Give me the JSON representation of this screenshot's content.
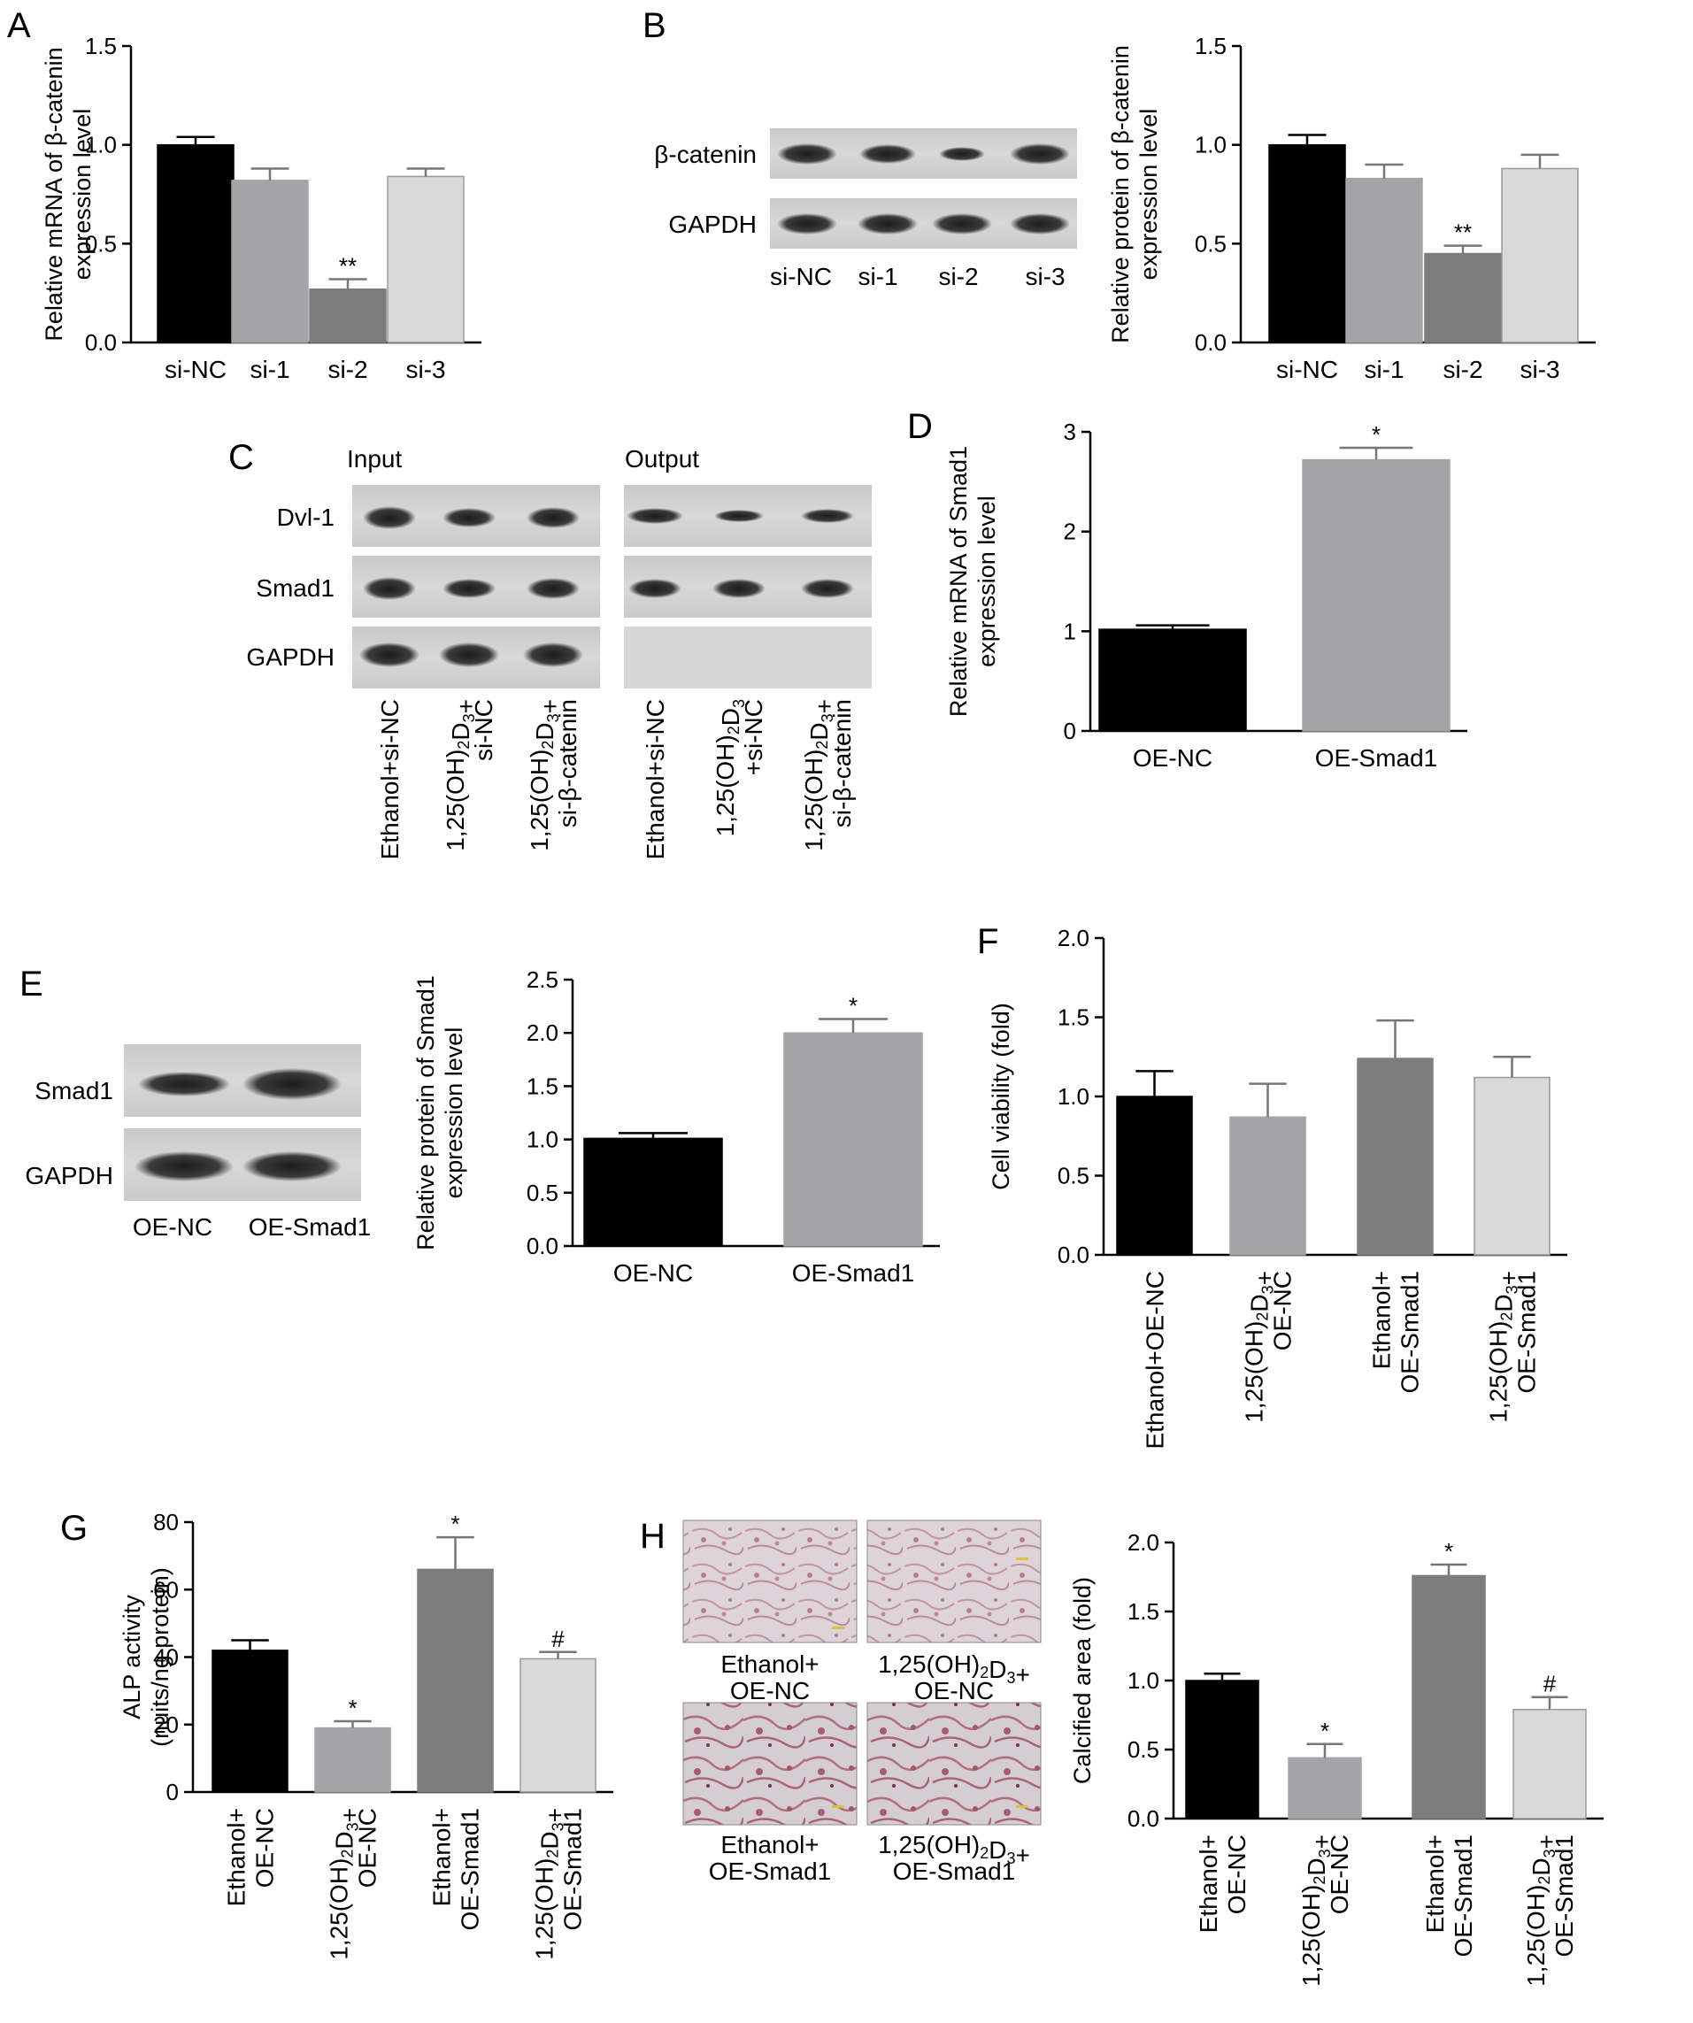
{
  "panels": {
    "A": "A",
    "B": "B",
    "C": "C",
    "D": "D",
    "E": "E",
    "F": "F",
    "G": "G",
    "H": "H"
  },
  "colors": {
    "black": "#000000",
    "mid_gray": "#a3a3a8",
    "dark_gray": "#7d7d7d",
    "light_gray": "#d9d9d9"
  },
  "blots": {
    "B": {
      "rows": [
        "β-catenin",
        "GAPDH"
      ],
      "lanes": [
        "si-NC",
        "si-1",
        "si-2",
        "si-3"
      ]
    },
    "C": {
      "headers": [
        "Input",
        "Output"
      ],
      "rows": [
        "Dvl-1",
        "Smad1",
        "GAPDH"
      ],
      "lane_lines": [
        [
          "Ethanol+si-NC"
        ],
        [
          "1,25(OH)<sub>2</sub>D<sub>3</sub>+",
          "si-NC"
        ],
        [
          "1,25(OH)<sub>2</sub>D<sub>3</sub>+",
          "si-β-catenin"
        ],
        [
          "Ethanol+si-NC"
        ],
        [
          "1,25(OH)<sub>2</sub>D<sub>3</sub>",
          "+si-NC"
        ],
        [
          "1,25(OH)<sub>2</sub>D<sub>3</sub>+",
          "si-β-catenin"
        ]
      ]
    },
    "E": {
      "rows": [
        "Smad1",
        "GAPDH"
      ],
      "lanes": [
        "OE-NC",
        "OE-Smad1"
      ]
    }
  },
  "images_H": {
    "captions": [
      [
        "Ethanol+",
        "OE-NC"
      ],
      [
        "1,25(OH)<sub>2</sub>D<sub>3</sub>+",
        "OE-NC"
      ],
      [
        "Ethanol+",
        "OE-Smad1"
      ],
      [
        "1,25(OH)<sub>2</sub>D<sub>3</sub>+",
        "OE-Smad1"
      ]
    ]
  },
  "chart_data": [
    {
      "id": "A",
      "type": "bar",
      "ylabel": [
        "Relative mRNA of β-catenin",
        "expression level"
      ],
      "ylim": [
        0,
        1.5
      ],
      "yticks": [
        "0.0",
        "0.5",
        "1.0",
        "1.5"
      ],
      "categories": [
        [
          "si-NC"
        ],
        [
          "si-1"
        ],
        [
          "si-2"
        ],
        [
          "si-3"
        ]
      ],
      "values": [
        1.0,
        0.82,
        0.27,
        0.84
      ],
      "errors": [
        0.04,
        0.06,
        0.05,
        0.04
      ],
      "annotations": [
        "",
        "",
        "**",
        ""
      ],
      "colors": [
        "#000000",
        "#a3a3a8",
        "#7d7d7d",
        "#d9d9d9"
      ],
      "rotated": false
    },
    {
      "id": "B",
      "type": "bar",
      "ylabel": [
        "Relative protein of β-catenin",
        "expression level"
      ],
      "ylim": [
        0,
        1.5
      ],
      "yticks": [
        "0.0",
        "0.5",
        "1.0",
        "1.5"
      ],
      "categories": [
        [
          "si-NC"
        ],
        [
          "si-1"
        ],
        [
          "si-2"
        ],
        [
          "si-3"
        ]
      ],
      "values": [
        1.0,
        0.83,
        0.45,
        0.88
      ],
      "errors": [
        0.05,
        0.07,
        0.04,
        0.07
      ],
      "annotations": [
        "",
        "",
        "**",
        ""
      ],
      "colors": [
        "#000000",
        "#a3a3a8",
        "#7d7d7d",
        "#d9d9d9"
      ],
      "rotated": false
    },
    {
      "id": "D",
      "type": "bar",
      "ylabel": [
        "Relative mRNA of Smad1",
        "expression level"
      ],
      "ylim": [
        0,
        3
      ],
      "yticks": [
        "0",
        "1",
        "2",
        "3"
      ],
      "categories": [
        [
          "OE-NC"
        ],
        [
          "OE-Smad1"
        ]
      ],
      "values": [
        1.02,
        2.72
      ],
      "errors": [
        0.04,
        0.12
      ],
      "annotations": [
        "",
        "*"
      ],
      "colors": [
        "#000000",
        "#a3a3a8"
      ],
      "rotated": false
    },
    {
      "id": "E",
      "type": "bar",
      "ylabel": [
        "Relative protein of Smad1",
        "expression level"
      ],
      "ylim": [
        0,
        2.5
      ],
      "yticks": [
        "0.0",
        "0.5",
        "1.0",
        "1.5",
        "2.0",
        "2.5"
      ],
      "categories": [
        [
          "OE-NC"
        ],
        [
          "OE-Smad1"
        ]
      ],
      "values": [
        1.01,
        2.0
      ],
      "errors": [
        0.05,
        0.13
      ],
      "annotations": [
        "",
        "*"
      ],
      "colors": [
        "#000000",
        "#a3a3a8"
      ],
      "rotated": false
    },
    {
      "id": "F",
      "type": "bar",
      "ylabel": [
        "Cell viability (fold)"
      ],
      "ylim": [
        0,
        2.0
      ],
      "yticks": [
        "0.0",
        "0.5",
        "1.0",
        "1.5",
        "2.0"
      ],
      "categories": [
        [
          "Ethanol+OE-NC"
        ],
        [
          "1,25(OH)<sub>2</sub>D<sub>3</sub>+",
          "OE-NC"
        ],
        [
          "Ethanol+",
          "OE-Smad1"
        ],
        [
          "1,25(OH)<sub>2</sub>D<sub>3</sub>+",
          "OE-Smad1"
        ]
      ],
      "values": [
        1.0,
        0.87,
        1.24,
        1.12
      ],
      "errors": [
        0.16,
        0.21,
        0.24,
        0.13
      ],
      "annotations": [
        "",
        "",
        "",
        ""
      ],
      "colors": [
        "#000000",
        "#a3a3a8",
        "#7d7d7d",
        "#d9d9d9"
      ],
      "rotated": true
    },
    {
      "id": "G",
      "type": "bar",
      "ylabel": [
        "ALP activity",
        "(nuits/ng protein)"
      ],
      "ylim": [
        0,
        80
      ],
      "yticks": [
        "0",
        "20",
        "40",
        "60",
        "80"
      ],
      "categories": [
        [
          "Ethanol+",
          "OE-NC"
        ],
        [
          "1,25(OH)<sub>2</sub>D<sub>3</sub>+",
          "OE-NC"
        ],
        [
          "Ethanol+",
          "OE-Smad1"
        ],
        [
          "1,25(OH)<sub>2</sub>D<sub>3</sub>+",
          "OE-Smad1"
        ]
      ],
      "values": [
        42,
        19,
        66,
        39.5
      ],
      "errors": [
        3,
        2,
        9.5,
        2
      ],
      "annotations": [
        "",
        "*",
        "*",
        "#"
      ],
      "colors": [
        "#000000",
        "#a3a3a8",
        "#7d7d7d",
        "#d9d9d9"
      ],
      "rotated": true
    },
    {
      "id": "H",
      "type": "bar",
      "ylabel": [
        "Calcified area (fold)"
      ],
      "ylim": [
        0,
        2.0
      ],
      "yticks": [
        "0.0",
        "0.5",
        "1.0",
        "1.5",
        "2.0"
      ],
      "categories": [
        [
          "Ethanol+",
          "OE-NC"
        ],
        [
          "1,25(OH)<sub>2</sub>D<sub>3</sub>+",
          "OE-NC"
        ],
        [
          "Ethanol+",
          "OE-Smad1"
        ],
        [
          "1,25(OH)<sub>2</sub>D<sub>3</sub>+",
          "OE-Smad1"
        ]
      ],
      "values": [
        1.0,
        0.44,
        1.76,
        0.79
      ],
      "errors": [
        0.05,
        0.1,
        0.08,
        0.09
      ],
      "annotations": [
        "",
        "*",
        "*",
        "#"
      ],
      "colors": [
        "#000000",
        "#a3a3a8",
        "#7d7d7d",
        "#d9d9d9"
      ],
      "rotated": true
    }
  ]
}
